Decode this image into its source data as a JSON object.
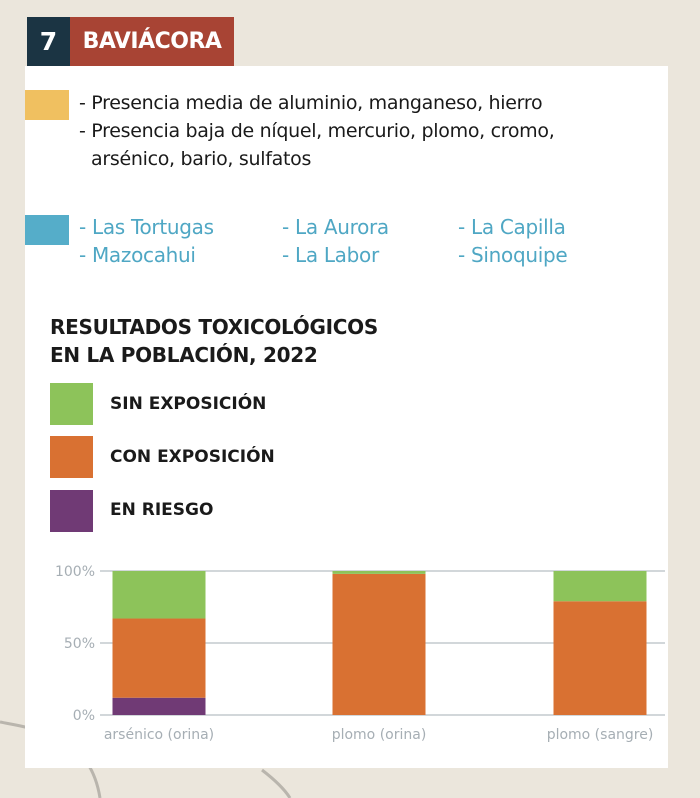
{
  "header": {
    "number": "7",
    "title": "BAVIÁCORA"
  },
  "legend_top": {
    "yellow": {
      "color": "#f0c060",
      "lines": [
        "- Presencia media de aluminio, manganeso, hierro",
        "- Presencia baja de níquel, mercurio, plomo, cromo,",
        "arsénico, bario, sulfatos"
      ]
    },
    "blue": {
      "color": "#55adc9",
      "sites": [
        "- Las Tortugas",
        "- La Aurora",
        "- La Capilla",
        "- Mazocahui",
        "- La Labor",
        "- Sinoquipe"
      ]
    }
  },
  "chart_data": {
    "type": "bar",
    "stacked": true,
    "title": "RESULTADOS TOXICOLÓGICOS EN LA POBLACIÓN, 2022",
    "title_lines": [
      "RESULTADOS TOXICOLÓGICOS",
      "EN LA POBLACIÓN, 2022"
    ],
    "categories": [
      "arsénico (orina)",
      "plomo (orina)",
      "plomo (sangre)"
    ],
    "series": [
      {
        "name": "EN RIESGO",
        "color": "#703a75",
        "values": [
          12,
          0,
          0
        ]
      },
      {
        "name": "CON EXPOSICIÓN",
        "color": "#d97132",
        "values": [
          55,
          98,
          79
        ]
      },
      {
        "name": "SIN EXPOSICIÓN",
        "color": "#8dc35a",
        "values": [
          33,
          2,
          21
        ]
      }
    ],
    "legend_order": [
      "SIN EXPOSICIÓN",
      "CON EXPOSICIÓN",
      "EN RIESGO"
    ],
    "ylim": [
      0,
      100
    ],
    "yticks": [
      "0%",
      "50%",
      "100%"
    ],
    "grid": true,
    "legend_placement": "top"
  }
}
